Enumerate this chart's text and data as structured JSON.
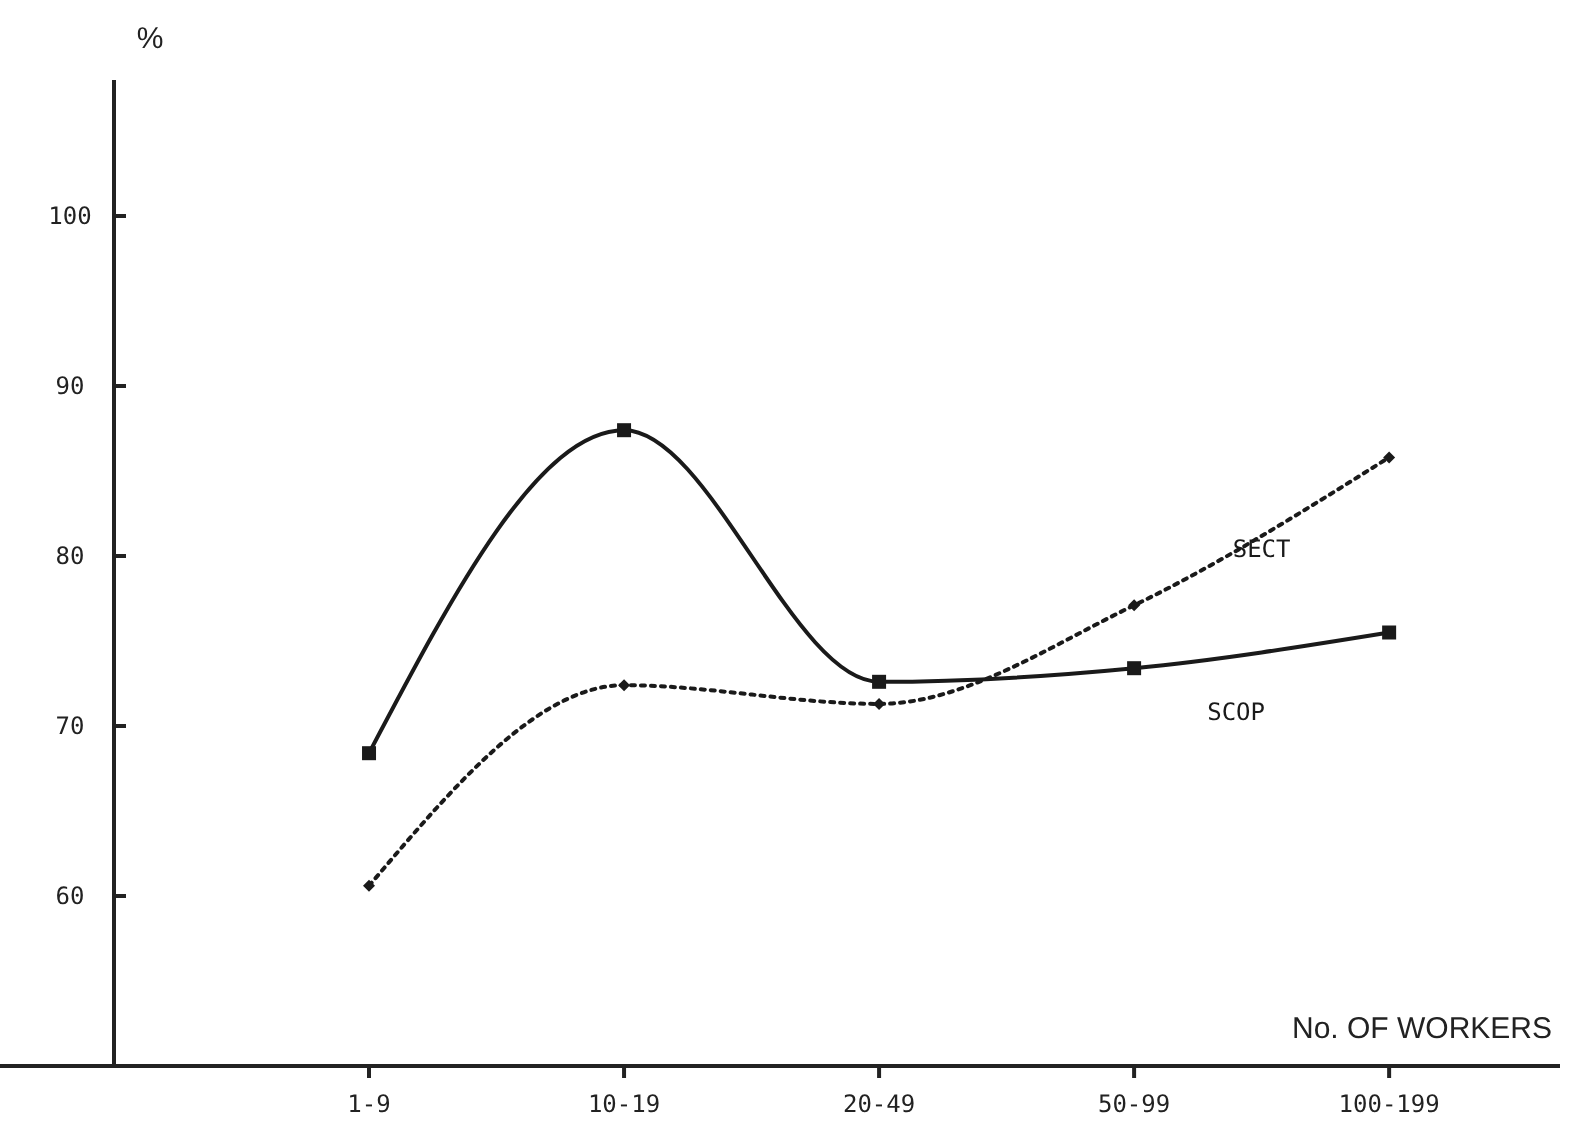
{
  "chart_data": {
    "type": "line",
    "ylabel": "%",
    "xlabel": "No. OF WORKERS",
    "categories": [
      "1-9",
      "10-19",
      "20-49",
      "50-99",
      "100-199"
    ],
    "ylim": [
      50,
      108
    ],
    "yticks": [
      60,
      70,
      80,
      90,
      100
    ],
    "grid": false,
    "series": [
      {
        "name": "SCOP",
        "color": "#1a1a1a",
        "values": [
          68.4,
          87.4,
          72.6,
          73.4,
          75.5
        ],
        "marker": "square",
        "line_style": "solid"
      },
      {
        "name": "SECT",
        "color": "#1a1a1a",
        "values": [
          60.6,
          72.4,
          71.3,
          77.1,
          85.8
        ],
        "marker": "diamond",
        "line_style": "dotted"
      }
    ]
  }
}
